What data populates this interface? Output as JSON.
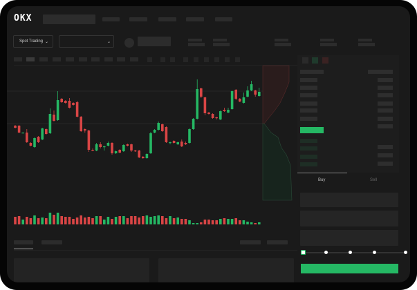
{
  "brand": {
    "logo": "OKX"
  },
  "header": {
    "market_selector": "Spot Trading",
    "chevron": "⌄"
  },
  "trade": {
    "tabs": [
      {
        "label": "Buy"
      },
      {
        "label": "Sell"
      }
    ],
    "slider_percent": 0
  },
  "colors": {
    "up": "#25b864",
    "down": "#d94545",
    "bg": "#1a1a1a",
    "placeholder": "#2c2c2c"
  },
  "chart_data": {
    "type": "candlestick",
    "candles": [
      [
        118,
        115,
        119,
        114
      ],
      [
        118,
        108,
        119,
        107
      ],
      [
        107,
        108,
        108,
        107
      ],
      [
        108,
        94,
        113,
        93
      ],
      [
        93,
        89,
        94,
        88
      ],
      [
        87,
        100,
        101,
        86
      ],
      [
        102,
        94,
        103,
        93
      ],
      [
        98,
        114,
        115,
        97
      ],
      [
        113,
        106,
        114,
        105
      ],
      [
        107,
        135,
        143,
        106
      ],
      [
        134,
        125,
        140,
        124
      ],
      [
        126,
        155,
        168,
        125
      ],
      [
        157,
        152,
        158,
        151
      ],
      [
        154,
        151,
        155,
        150
      ],
      [
        154,
        144,
        158,
        143
      ],
      [
        151,
        148,
        152,
        147
      ],
      [
        152,
        131,
        154,
        130
      ],
      [
        131,
        110,
        132,
        109
      ],
      [
        113,
        111,
        114,
        108
      ],
      [
        111,
        83,
        112,
        80
      ],
      [
        83,
        82,
        85,
        81
      ],
      [
        82,
        91,
        93,
        81
      ],
      [
        91,
        87,
        94,
        85
      ],
      [
        87,
        88,
        89,
        82
      ],
      [
        89,
        93,
        95,
        88
      ],
      [
        93,
        78,
        94,
        76
      ],
      [
        78,
        81,
        82,
        77
      ],
      [
        83,
        79,
        84,
        78
      ],
      [
        81,
        90,
        91,
        80
      ],
      [
        91,
        89,
        92,
        88
      ],
      [
        91,
        82,
        92,
        80
      ],
      [
        82,
        81,
        83,
        80
      ],
      [
        82,
        72,
        83,
        71
      ],
      [
        73,
        71,
        74,
        70
      ],
      [
        71,
        77,
        78,
        70
      ],
      [
        78,
        107,
        109,
        77
      ],
      [
        108,
        112,
        113,
        107
      ],
      [
        112,
        122,
        124,
        111
      ],
      [
        120,
        110,
        121,
        109
      ],
      [
        116,
        94,
        117,
        93
      ],
      [
        93,
        94,
        95,
        91
      ],
      [
        96,
        93,
        97,
        92
      ],
      [
        91,
        94,
        95,
        90
      ],
      [
        95,
        88,
        98,
        87
      ],
      [
        93,
        91,
        95,
        90
      ],
      [
        93,
        113,
        114,
        92
      ],
      [
        113,
        128,
        129,
        112
      ],
      [
        128,
        171,
        185,
        127
      ],
      [
        172,
        160,
        173,
        158
      ],
      [
        159,
        136,
        160,
        133
      ],
      [
        137,
        135,
        138,
        134
      ],
      [
        135,
        129,
        136,
        128
      ],
      [
        130,
        129,
        131,
        127
      ],
      [
        127,
        139,
        140,
        126
      ],
      [
        141,
        139,
        144,
        138
      ],
      [
        137,
        141,
        144,
        136
      ],
      [
        142,
        168,
        169,
        141
      ],
      [
        170,
        157,
        171,
        155
      ],
      [
        157,
        153,
        158,
        152
      ],
      [
        151,
        159,
        166,
        150
      ],
      [
        160,
        169,
        175,
        159
      ],
      [
        169,
        178,
        183,
        168
      ],
      [
        169,
        163,
        170,
        160
      ],
      [
        161,
        167,
        173,
        160
      ]
    ],
    "volume": [
      11,
      12,
      7,
      11,
      9,
      13,
      9,
      10,
      9,
      17,
      14,
      17,
      12,
      11,
      11,
      8,
      10,
      13,
      10,
      11,
      9,
      12,
      12,
      7,
      11,
      8,
      11,
      12,
      12,
      9,
      12,
      12,
      10,
      12,
      13,
      11,
      12,
      13,
      12,
      9,
      12,
      9,
      10,
      8,
      8,
      6,
      2,
      2,
      3,
      7,
      7,
      6,
      6,
      8,
      9,
      8,
      8,
      9,
      6,
      6,
      4,
      3,
      2,
      3
    ]
  }
}
